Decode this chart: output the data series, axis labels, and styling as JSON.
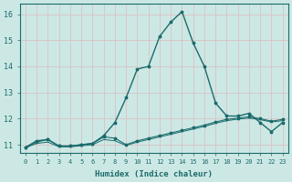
{
  "xlabel": "Humidex (Indice chaleur)",
  "background_color": "#cce8e5",
  "grid_color": "#d8c8c8",
  "line_color": "#1a6b6b",
  "xlim": [
    -0.5,
    23.5
  ],
  "ylim": [
    10.7,
    16.4
  ],
  "yticks": [
    11,
    12,
    13,
    14,
    15,
    16
  ],
  "xticks": [
    0,
    1,
    2,
    3,
    4,
    5,
    6,
    7,
    8,
    9,
    10,
    11,
    12,
    13,
    14,
    15,
    16,
    17,
    18,
    19,
    20,
    21,
    22,
    23
  ],
  "series_main_x": [
    0,
    1,
    2,
    3,
    4,
    5,
    6,
    7,
    8,
    9,
    10,
    11,
    12,
    13,
    14,
    15,
    16,
    17,
    18,
    19,
    20,
    21,
    22,
    23
  ],
  "series_main_y": [
    10.9,
    11.15,
    11.2,
    10.95,
    10.95,
    11.0,
    11.05,
    11.35,
    11.85,
    12.8,
    13.9,
    14.0,
    15.15,
    15.7,
    16.1,
    14.9,
    14.0,
    12.6,
    12.1,
    12.1,
    12.2,
    11.85,
    11.5,
    11.85
  ],
  "series_flat1_x": [
    0,
    1,
    2,
    3,
    4,
    5,
    6,
    7,
    8,
    9,
    10,
    11,
    12,
    13,
    14,
    15,
    16,
    17,
    18,
    19,
    20,
    21,
    22,
    23
  ],
  "series_flat1_y": [
    10.9,
    11.1,
    11.2,
    10.95,
    10.95,
    11.0,
    11.05,
    11.3,
    11.25,
    11.0,
    11.15,
    11.25,
    11.35,
    11.45,
    11.55,
    11.65,
    11.75,
    11.87,
    11.97,
    12.02,
    12.07,
    12.0,
    11.9,
    11.97
  ],
  "series_flat2_x": [
    0,
    1,
    2,
    3,
    4,
    5,
    6,
    7,
    8,
    9,
    10,
    11,
    12,
    13,
    14,
    15,
    16,
    17,
    18,
    19,
    20,
    21,
    22,
    23
  ],
  "series_flat2_y": [
    10.88,
    11.05,
    11.1,
    10.92,
    10.92,
    10.96,
    11.0,
    11.2,
    11.15,
    10.97,
    11.1,
    11.2,
    11.3,
    11.4,
    11.5,
    11.6,
    11.7,
    11.82,
    11.92,
    11.98,
    12.02,
    11.96,
    11.87,
    11.92
  ]
}
